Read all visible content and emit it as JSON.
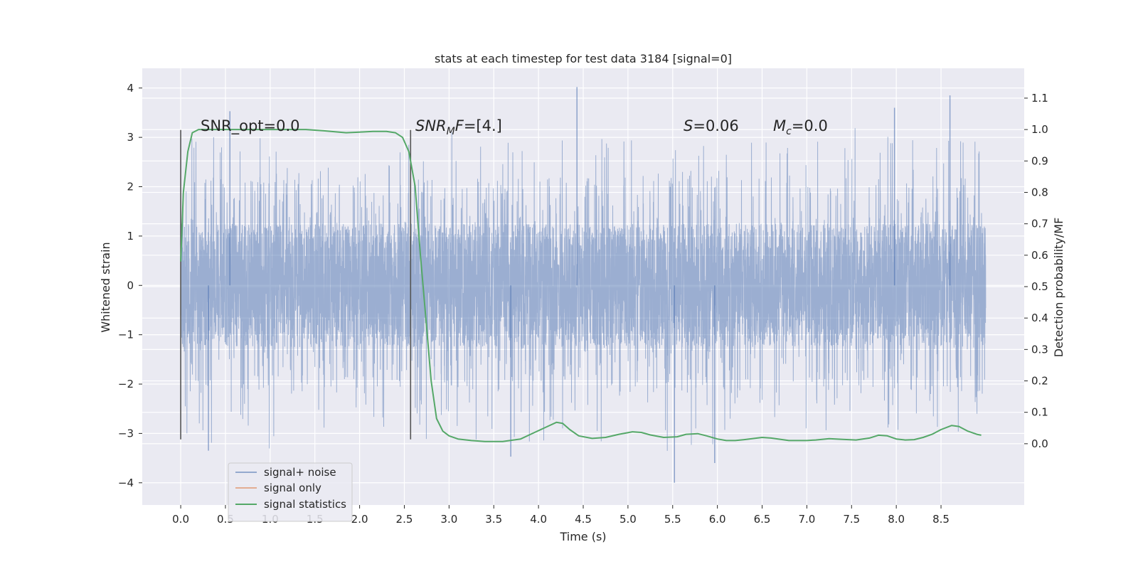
{
  "chart_data": {
    "type": "line",
    "title": "stats at each timestep for test data 3184 [signal=0]",
    "xlabel": "Time (s)",
    "ylabel_left": "Whitened strain",
    "ylabel_right": "Detection probability/MF",
    "xlim": [
      -0.43,
      9.43
    ],
    "ylim_left": [
      -4.45,
      4.4
    ],
    "ylim_right": [
      -0.195,
      1.195
    ],
    "x_ticks": [
      "0.0",
      "0.5",
      "1.0",
      "1.5",
      "2.0",
      "2.5",
      "3.0",
      "3.5",
      "4.0",
      "4.5",
      "5.0",
      "5.5",
      "6.0",
      "6.5",
      "7.0",
      "7.5",
      "8.0",
      "8.5"
    ],
    "y_ticks_left": [
      "−4",
      "−3",
      "−2",
      "−1",
      "0",
      "1",
      "2",
      "3",
      "4"
    ],
    "y_ticks_right": [
      "0.0",
      "0.1",
      "0.2",
      "0.3",
      "0.4",
      "0.5",
      "0.6",
      "0.7",
      "0.8",
      "0.9",
      "1.0",
      "1.1"
    ],
    "grid": true,
    "legend_position": "lower-left",
    "colors": {
      "background": "#eaeaf2",
      "grid": "#ffffff",
      "noise": "#4c72b0",
      "signal": "#dd8452",
      "statistics": "#55a868",
      "marker": "#555555"
    },
    "annotations": [
      {
        "x": 0.2,
        "text_plain": "SNR_opt=0.0"
      },
      {
        "x": 2.6,
        "math_var": "SNR",
        "math_sub": "M",
        "math_after": "F",
        "suffix": "=[4.]"
      },
      {
        "x": 5.6,
        "math_var": "S",
        "suffix": "=0.06"
      },
      {
        "x": 6.6,
        "math_var": "M",
        "math_sub": "c",
        "suffix": "=0.0"
      }
    ],
    "vertical_markers": [
      {
        "x": 0.0,
        "y_range": [
          -3.12,
          3.15
        ]
      },
      {
        "x": 2.57,
        "y_range": [
          -3.12,
          3.15
        ]
      }
    ],
    "noise_trace": {
      "x_range": [
        0.0,
        9.0
      ],
      "points": 6500,
      "core_amplitude": 1.25,
      "max": 4.02,
      "min": -4.0,
      "highlight_peaks": [
        {
          "x": 0.55,
          "y": 3.53
        },
        {
          "x": 4.43,
          "y": 4.02
        },
        {
          "x": 8.6,
          "y": 3.85
        },
        {
          "x": 7.98,
          "y": 3.6
        },
        {
          "x": 5.52,
          "y": -4.0
        },
        {
          "x": 0.31,
          "y": -3.35
        },
        {
          "x": 5.97,
          "y": -3.6
        },
        {
          "x": 3.69,
          "y": -3.47
        }
      ]
    },
    "series": [
      {
        "name": "signal+ noise",
        "role": "noise"
      },
      {
        "name": "signal only",
        "role": "signal",
        "values": []
      },
      {
        "name": "signal statistics",
        "role": "statistics",
        "axis": "right",
        "x": [
          0.0,
          0.03,
          0.08,
          0.13,
          0.2,
          0.3,
          0.5,
          0.8,
          1.0,
          1.2,
          1.4,
          1.6,
          1.85,
          2.0,
          2.15,
          2.3,
          2.4,
          2.48,
          2.55,
          2.62,
          2.68,
          2.74,
          2.8,
          2.86,
          2.93,
          3.0,
          3.1,
          3.25,
          3.4,
          3.6,
          3.8,
          3.95,
          4.1,
          4.2,
          4.27,
          4.35,
          4.45,
          4.6,
          4.75,
          4.9,
          5.05,
          5.15,
          5.25,
          5.4,
          5.55,
          5.65,
          5.78,
          5.88,
          6.0,
          6.1,
          6.2,
          6.3,
          6.5,
          6.6,
          6.8,
          7.0,
          7.1,
          7.25,
          7.4,
          7.55,
          7.7,
          7.8,
          7.9,
          8.0,
          8.1,
          8.2,
          8.3,
          8.4,
          8.5,
          8.62,
          8.7,
          8.8,
          8.9,
          8.95
        ],
        "y": [
          0.58,
          0.8,
          0.93,
          0.99,
          1.0,
          1.0,
          1.0,
          1.0,
          1.0,
          1.0,
          1.0,
          0.996,
          0.99,
          0.992,
          0.994,
          0.994,
          0.99,
          0.975,
          0.93,
          0.82,
          0.6,
          0.4,
          0.2,
          0.08,
          0.04,
          0.025,
          0.015,
          0.01,
          0.007,
          0.007,
          0.015,
          0.035,
          0.055,
          0.068,
          0.065,
          0.045,
          0.025,
          0.017,
          0.02,
          0.03,
          0.038,
          0.036,
          0.028,
          0.02,
          0.022,
          0.03,
          0.032,
          0.025,
          0.015,
          0.01,
          0.01,
          0.013,
          0.02,
          0.018,
          0.01,
          0.01,
          0.012,
          0.016,
          0.014,
          0.012,
          0.018,
          0.027,
          0.025,
          0.015,
          0.012,
          0.013,
          0.02,
          0.03,
          0.045,
          0.058,
          0.055,
          0.04,
          0.03,
          0.027
        ]
      }
    ]
  }
}
